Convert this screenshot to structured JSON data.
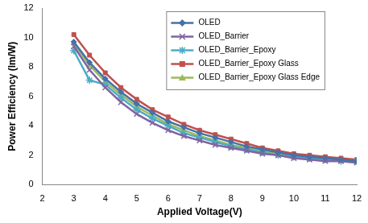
{
  "chart_data": {
    "type": "line",
    "x_label": "Applied Voltage(V)",
    "y_label": "Power Efficiency (lm/W)",
    "x": [
      3,
      3.5,
      4,
      4.5,
      5,
      5.5,
      6,
      6.5,
      7,
      7.5,
      8,
      8.5,
      9,
      9.5,
      10,
      10.5,
      11,
      11.5,
      12
    ],
    "series": [
      {
        "name": "OLED",
        "color": "#4572a7",
        "marker": "diamond",
        "values": [
          9.7,
          8.3,
          7.2,
          6.3,
          5.5,
          4.9,
          4.3,
          3.9,
          3.5,
          3.2,
          2.9,
          2.6,
          2.4,
          2.2,
          2.0,
          1.9,
          1.8,
          1.7,
          1.6
        ]
      },
      {
        "name": "OLED_Barrier",
        "color": "#8064a2",
        "marker": "x",
        "values": [
          9.4,
          7.8,
          6.6,
          5.6,
          4.8,
          4.2,
          3.7,
          3.3,
          3.0,
          2.7,
          2.5,
          2.3,
          2.1,
          2.0,
          1.8,
          1.7,
          1.6,
          1.6,
          1.5
        ]
      },
      {
        "name": "OLED_Barrier_Epoxy",
        "color": "#4bacc6",
        "marker": "star",
        "values": [
          9.1,
          7.1,
          6.8,
          5.9,
          5.1,
          4.5,
          4.0,
          3.5,
          3.2,
          2.9,
          2.6,
          2.4,
          2.2,
          2.0,
          1.9,
          1.8,
          1.7,
          1.6,
          1.6
        ]
      },
      {
        "name": "OLED_Barrier_Epoxy Glass",
        "color": "#c0504d",
        "marker": "square",
        "values": [
          10.2,
          8.8,
          7.6,
          6.6,
          5.8,
          5.1,
          4.6,
          4.1,
          3.7,
          3.4,
          3.1,
          2.8,
          2.5,
          2.3,
          2.1,
          2.0,
          1.9,
          1.8,
          1.7
        ]
      },
      {
        "name": "OLED_Barrier_Epoxy Glass Edge",
        "color": "#9bbb59",
        "marker": "triangle",
        "values": [
          9.6,
          8.1,
          7.0,
          6.1,
          5.3,
          4.7,
          4.1,
          3.7,
          3.3,
          3.0,
          2.7,
          2.5,
          2.3,
          2.1,
          1.9,
          1.8,
          1.7,
          1.6,
          1.5
        ]
      }
    ],
    "xlim": [
      2,
      12
    ],
    "xticks": [
      2,
      3,
      4,
      5,
      6,
      7,
      8,
      9,
      10,
      11,
      12
    ],
    "ylim": [
      0,
      12
    ],
    "yticks": [
      0,
      2,
      4,
      6,
      8,
      10,
      12
    ],
    "grid": false,
    "legend": "upper right"
  }
}
